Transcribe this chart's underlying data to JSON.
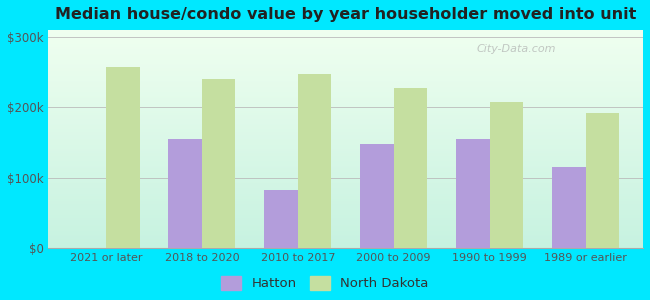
{
  "title": "Median house/condo value by year householder moved into unit",
  "categories": [
    "2021 or later",
    "2018 to 2020",
    "2010 to 2017",
    "2000 to 2009",
    "1990 to 1999",
    "1989 or earlier"
  ],
  "hatton_values": [
    null,
    155000,
    82000,
    148000,
    155000,
    115000
  ],
  "nd_values": [
    258000,
    240000,
    248000,
    228000,
    208000,
    192000
  ],
  "hatton_color": "#b39ddb",
  "nd_color": "#c5dfa0",
  "bg_outer": "#00e8ff",
  "ylim": [
    0,
    310000
  ],
  "yticks": [
    0,
    100000,
    200000,
    300000
  ],
  "ytick_labels": [
    "$0",
    "$100k",
    "$200k",
    "$300k"
  ],
  "legend_hatton": "Hatton",
  "legend_nd": "North Dakota",
  "bar_width": 0.35
}
